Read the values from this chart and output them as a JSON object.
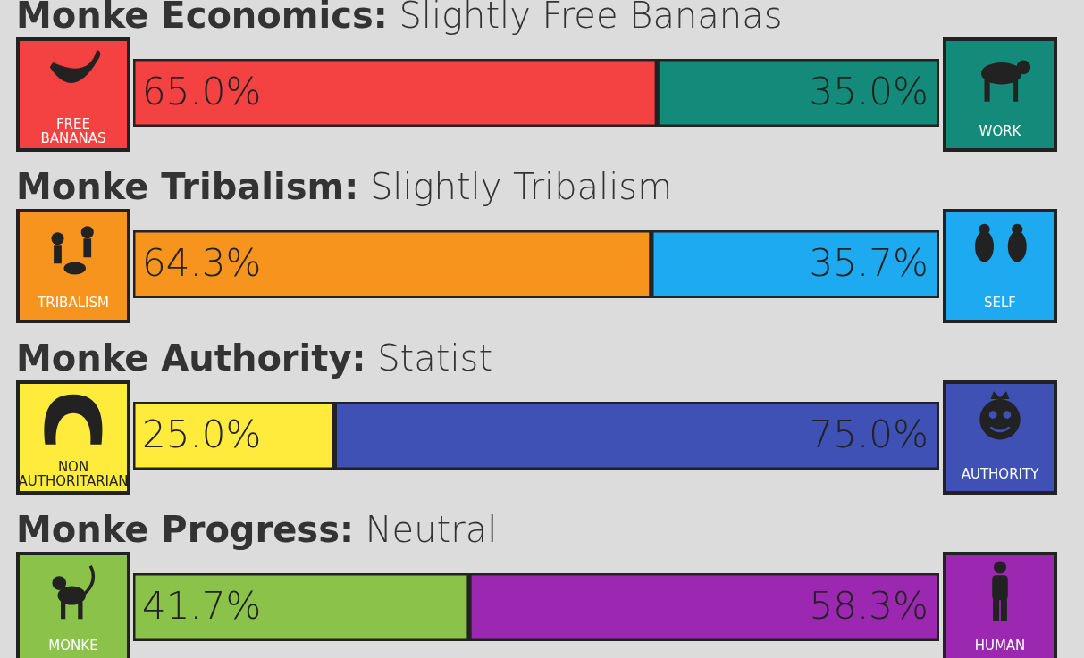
{
  "chart_data": [
    {
      "type": "bar",
      "orientation": "horizontal",
      "stacked": true,
      "legend": "right",
      "title": "Monke Economics:",
      "subtitle": "Slightly Free Bananas",
      "categories": [
        null
      ],
      "series": [
        {
          "name": "FREE BANANAS",
          "color": "#f44141",
          "values": [
            65.0
          ],
          "value_labels": [
            "65.0%"
          ]
        },
        {
          "name": "WORK",
          "color": "#138a7a",
          "values": [
            35.0
          ],
          "value_labels": [
            "35.0%"
          ]
        }
      ]
    },
    {
      "type": "bar",
      "orientation": "horizontal",
      "stacked": true,
      "legend": "left",
      "title": "Monke Tribalism:",
      "subtitle": "Slightly Tribalism",
      "categories": [
        null
      ],
      "series": [
        {
          "name": "TRIBALISM",
          "color": "#f7941d",
          "values": [
            64.3
          ],
          "value_labels": [
            "64.3%"
          ]
        },
        {
          "name": "SELF",
          "color": "#1eaaf1",
          "values": [
            35.7
          ],
          "value_labels": [
            "35.7%"
          ]
        }
      ]
    },
    {
      "type": "bar",
      "orientation": "horizontal",
      "stacked": true,
      "legend": "left",
      "title": "Monke Authority:",
      "subtitle": "Statist",
      "categories": [
        null
      ],
      "series": [
        {
          "name": "NON AUTHORITARIAN",
          "color": "#ffeb3b",
          "values": [
            25.0
          ],
          "value_labels": [
            "25.0%"
          ]
        },
        {
          "name": "AUTHORITY",
          "color": "#3f51b5",
          "values": [
            75.0
          ],
          "value_labels": [
            "75.0%"
          ]
        }
      ]
    },
    {
      "type": "bar",
      "orientation": "horizontal",
      "stacked": true,
      "legend": "left",
      "title": "Monke Progress:",
      "subtitle": "Neutral",
      "categories": [
        null
      ],
      "series": [
        {
          "name": "MONKE",
          "color": "#8bc34a",
          "values": [
            41.7
          ],
          "value_labels": [
            "41.7%"
          ]
        },
        {
          "name": "HUMAN",
          "color": "#9c27b0",
          "values": [
            58.3
          ],
          "value_labels": [
            "58.3%"
          ]
        }
      ]
    }
  ]
}
